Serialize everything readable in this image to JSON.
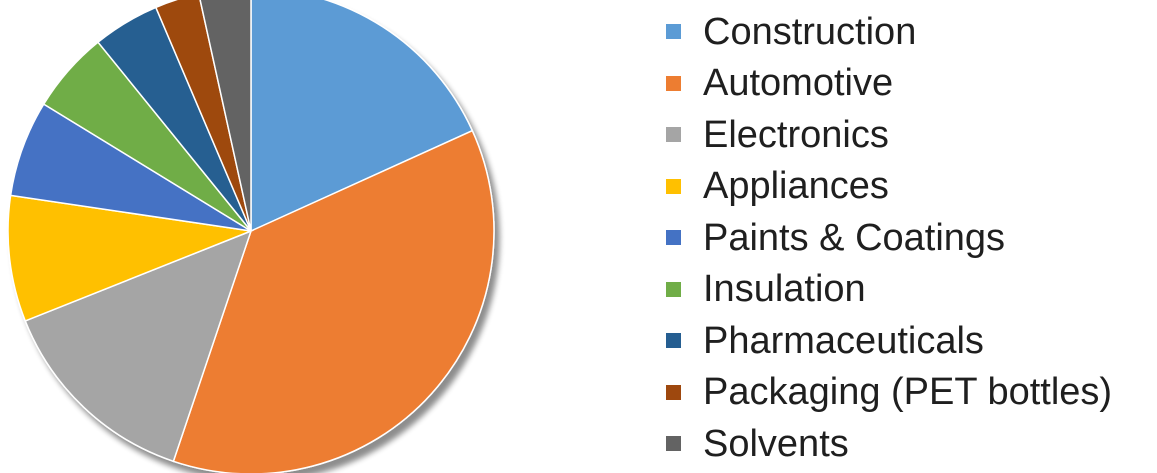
{
  "chart_data": {
    "type": "pie",
    "title": "",
    "legend_position": "right",
    "start_angle_deg": 0,
    "direction": "clockwise",
    "slices": [
      {
        "name": "Construction",
        "value": 18.5,
        "color": "#5B9BD5"
      },
      {
        "name": "Automotive",
        "value": 37.5,
        "color": "#ED7D31"
      },
      {
        "name": "Electronics",
        "value": 14.0,
        "color": "#A5A5A5"
      },
      {
        "name": "Appliances",
        "value": 8.5,
        "color": "#FFC000"
      },
      {
        "name": "Paints & Coatings",
        "value": 6.5,
        "color": "#4472C4"
      },
      {
        "name": "Insulation",
        "value": 5.5,
        "color": "#70AD47"
      },
      {
        "name": "Pharmaceuticals",
        "value": 4.5,
        "color": "#255E91"
      },
      {
        "name": "Packaging (PET bottles)",
        "value": 3.0,
        "color": "#9E480E"
      },
      {
        "name": "Solvents",
        "value": 3.5,
        "color": "#636363"
      }
    ]
  }
}
